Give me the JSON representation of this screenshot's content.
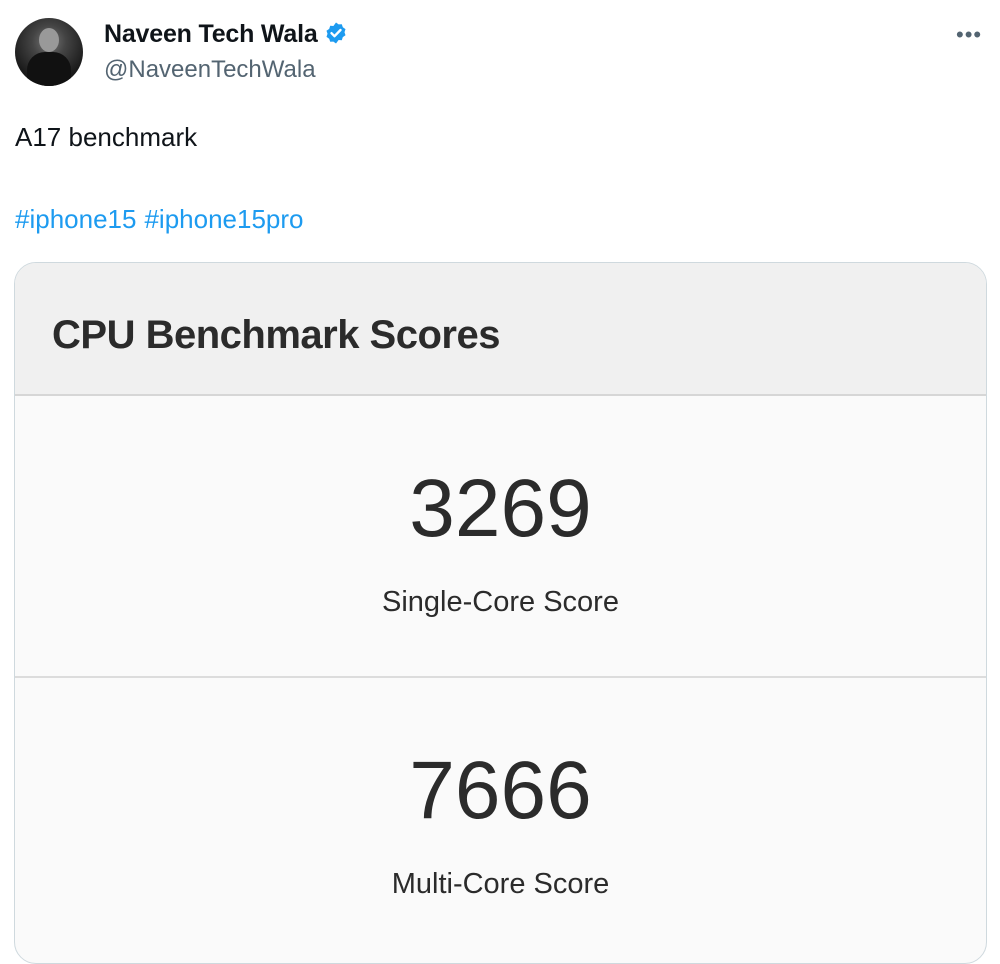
{
  "tweet": {
    "author_name": "Naveen Tech Wala",
    "handle": "@NaveenTechWala",
    "verified": true,
    "verified_color": "#1d9bf0",
    "more_icon": "more-horizontal-icon",
    "more_label": "•••",
    "text": "A17 benchmark",
    "hashtags": [
      "#iphone15",
      "#iphone15pro"
    ],
    "hashtag_color": "#1d9bf0"
  },
  "image": {
    "title": "CPU Benchmark Scores",
    "scores": [
      {
        "value": "3269",
        "label": "Single-Core Score"
      },
      {
        "value": "7666",
        "label": "Multi-Core Score"
      }
    ]
  }
}
